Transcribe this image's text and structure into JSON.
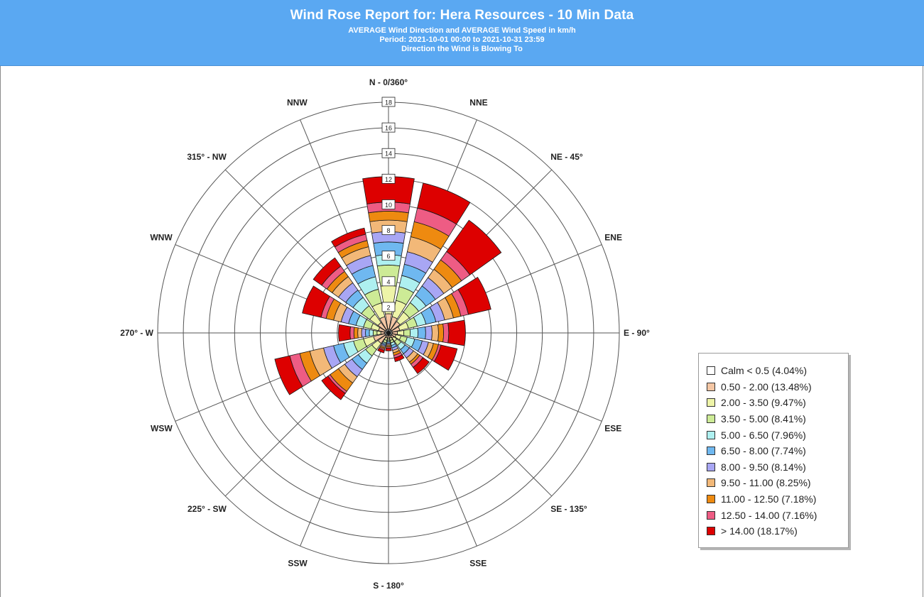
{
  "header": {
    "title": "Wind Rose Report for: Hera Resources - 10 Min Data",
    "subtitle": "AVERAGE Wind Direction and AVERAGE Wind Speed in km/h",
    "period": "Period: 2021-10-01 00:00 to 2021-10-31 23:59",
    "direction_note": "Direction the Wind is Blowing To"
  },
  "colors": {
    "header_bg": "#5aa8f2",
    "grid": "#555555",
    "bins": [
      "#ffffff",
      "#f4c6a4",
      "#eef4a8",
      "#cdeb96",
      "#aef0f0",
      "#6fb8f0",
      "#a8a6f4",
      "#f2b878",
      "#ee8a10",
      "#ee5c84",
      "#dd0000"
    ]
  },
  "chart_data": {
    "type": "polar-stacked-bar",
    "title": "Wind Rose Report for: Hera Resources - 10 Min Data",
    "units": "km/h",
    "radial_axis": {
      "min": 0,
      "max": 18,
      "step": 2,
      "ticks": [
        "2",
        "4",
        "6",
        "8",
        "10",
        "12",
        "14",
        "16",
        "18"
      ],
      "unit": "%"
    },
    "direction_labels": [
      "N - 0/360°",
      "NNE",
      "NE - 45°",
      "ENE",
      "E - 90°",
      "ESE",
      "SE - 135°",
      "SSE",
      "S - 180°",
      "SSW",
      "225° - SW",
      "WSW",
      "270° - W",
      "WNW",
      "315° - NW",
      "NNW"
    ],
    "direction_angles_deg": [
      0,
      22.5,
      45,
      67.5,
      90,
      112.5,
      135,
      157.5,
      180,
      202.5,
      225,
      247.5,
      270,
      292.5,
      315,
      337.5
    ],
    "legend": [
      "Calm < 0.5 (4.04%)",
      "0.50 - 2.00 (13.48%)",
      "2.00 - 3.50 (9.47%)",
      "3.50 - 5.00 (8.41%)",
      "5.00 - 6.50 (7.96%)",
      "6.50 - 8.00 (7.74%)",
      "8.00 - 9.50 (8.14%)",
      "9.50 - 11.00 (8.25%)",
      "11.00 - 12.50 (7.18%)",
      "12.50 - 14.00 (7.16%)",
      "> 14.00 (18.17%)"
    ],
    "series_boundaries_note_free": true,
    "series": [
      {
        "direction": "N",
        "cumulative": [
          0.3,
          1.5,
          3.7,
          5.3,
          6.1,
          7.1,
          7.9,
          8.8,
          9.5,
          10.2,
          12.2
        ]
      },
      {
        "direction": "NNE",
        "cumulative": [
          0.3,
          1.3,
          2.6,
          3.7,
          4.6,
          5.5,
          6.5,
          7.7,
          8.9,
          10.0,
          12.0
        ]
      },
      {
        "direction": "NE",
        "cumulative": [
          0.3,
          1.1,
          2.0,
          2.9,
          3.6,
          4.5,
          5.3,
          6.1,
          7.0,
          7.8,
          10.8
        ]
      },
      {
        "direction": "ENE",
        "cumulative": [
          0.3,
          0.9,
          1.6,
          2.3,
          3.0,
          3.8,
          4.5,
          5.2,
          5.8,
          6.4,
          8.2
        ]
      },
      {
        "direction": "E",
        "cumulative": [
          0.3,
          0.7,
          1.2,
          1.7,
          2.3,
          2.9,
          3.4,
          3.9,
          4.3,
          4.7,
          6.0
        ]
      },
      {
        "direction": "ESE",
        "cumulative": [
          0.3,
          0.6,
          1.0,
          1.5,
          2.1,
          2.7,
          3.2,
          3.6,
          4.0,
          4.2,
          5.5
        ]
      },
      {
        "direction": "SE",
        "cumulative": [
          0.3,
          0.5,
          0.8,
          1.2,
          1.6,
          2.0,
          2.4,
          2.8,
          3.0,
          3.3,
          3.9
        ]
      },
      {
        "direction": "SSE",
        "cumulative": [
          0.2,
          0.4,
          0.6,
          0.8,
          1.0,
          1.2,
          1.4,
          1.6,
          1.8,
          2.0,
          2.3
        ]
      },
      {
        "direction": "S",
        "cumulative": [
          0.2,
          0.4,
          0.5,
          0.6,
          0.7,
          0.8,
          0.9,
          1.0,
          1.1,
          1.2,
          1.4
        ]
      },
      {
        "direction": "SSW",
        "cumulative": [
          0.2,
          0.4,
          0.6,
          0.8,
          0.9,
          1.0,
          1.1,
          1.2,
          1.3,
          1.4,
          1.6
        ]
      },
      {
        "direction": "SW",
        "cumulative": [
          0.3,
          1.0,
          1.6,
          2.2,
          2.9,
          3.5,
          4.2,
          4.8,
          5.6,
          5.8,
          6.4
        ]
      },
      {
        "direction": "WSW",
        "cumulative": [
          0.3,
          1.2,
          2.0,
          2.8,
          3.6,
          4.4,
          5.2,
          6.3,
          7.1,
          7.9,
          9.1
        ]
      },
      {
        "direction": "W",
        "cumulative": [
          0.3,
          0.6,
          0.9,
          1.2,
          1.5,
          1.8,
          2.1,
          2.4,
          2.7,
          3.0,
          3.9
        ]
      },
      {
        "direction": "WNW",
        "cumulative": [
          0.3,
          0.8,
          1.4,
          2.0,
          2.6,
          3.2,
          3.8,
          4.4,
          5.0,
          5.4,
          6.9
        ]
      },
      {
        "direction": "NW",
        "cumulative": [
          0.3,
          1.0,
          1.8,
          2.6,
          3.4,
          4.1,
          4.8,
          5.4,
          5.9,
          6.4,
          7.2
        ]
      },
      {
        "direction": "NNW",
        "cumulative": [
          0.3,
          1.3,
          2.4,
          3.5,
          4.5,
          5.4,
          6.2,
          6.9,
          7.4,
          7.9,
          8.4
        ]
      }
    ]
  }
}
